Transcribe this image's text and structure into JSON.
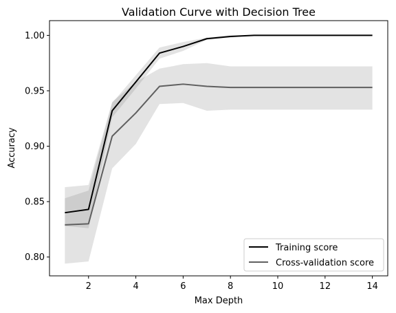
{
  "chart_data": {
    "type": "line",
    "title": "Validation Curve with Decision Tree",
    "xlabel": "Max Depth",
    "ylabel": "Accuracy",
    "xlim": [
      0.35,
      14.65
    ],
    "ylim": [
      0.783,
      1.0133
    ],
    "x_ticks": [
      2,
      4,
      6,
      8,
      10,
      12,
      14
    ],
    "x_tick_labels": [
      "2",
      "4",
      "6",
      "8",
      "10",
      "12",
      "14"
    ],
    "y_ticks": [
      0.8,
      0.85,
      0.9,
      0.95,
      1.0
    ],
    "y_tick_labels": [
      "0.80",
      "0.85",
      "0.90",
      "0.95",
      "1.00"
    ],
    "x": [
      1,
      2,
      3,
      4,
      5,
      6,
      7,
      8,
      9,
      10,
      11,
      12,
      13,
      14
    ],
    "series": [
      {
        "name": "Training score",
        "color": "#000000",
        "band_color": "#808080",
        "band_opacity": 0.22,
        "values": [
          0.84,
          0.843,
          0.932,
          0.958,
          0.984,
          0.99,
          0.997,
          0.999,
          1.0,
          1.0,
          1.0,
          1.0,
          1.0,
          1.0
        ],
        "lower": [
          0.828,
          0.826,
          0.926,
          0.952,
          0.979,
          0.986,
          0.996,
          0.998,
          1.0,
          1.0,
          1.0,
          1.0,
          1.0,
          1.0
        ],
        "upper": [
          0.853,
          0.86,
          0.939,
          0.964,
          0.989,
          0.994,
          0.998,
          1.0,
          1.0,
          1.0,
          1.0,
          1.0,
          1.0,
          1.0
        ]
      },
      {
        "name": "Cross-validation score",
        "color": "#5f5f5f",
        "band_color": "#c8c8c8",
        "band_opacity": 0.5,
        "values": [
          0.829,
          0.83,
          0.909,
          0.93,
          0.954,
          0.956,
          0.954,
          0.953,
          0.953,
          0.953,
          0.953,
          0.953,
          0.953,
          0.953
        ],
        "lower": [
          0.794,
          0.796,
          0.88,
          0.902,
          0.938,
          0.939,
          0.932,
          0.933,
          0.933,
          0.933,
          0.933,
          0.933,
          0.933,
          0.933
        ],
        "upper": [
          0.863,
          0.865,
          0.94,
          0.958,
          0.97,
          0.974,
          0.975,
          0.972,
          0.972,
          0.972,
          0.972,
          0.972,
          0.972,
          0.972
        ]
      }
    ],
    "grid": false,
    "legend_position": "lower-right"
  }
}
